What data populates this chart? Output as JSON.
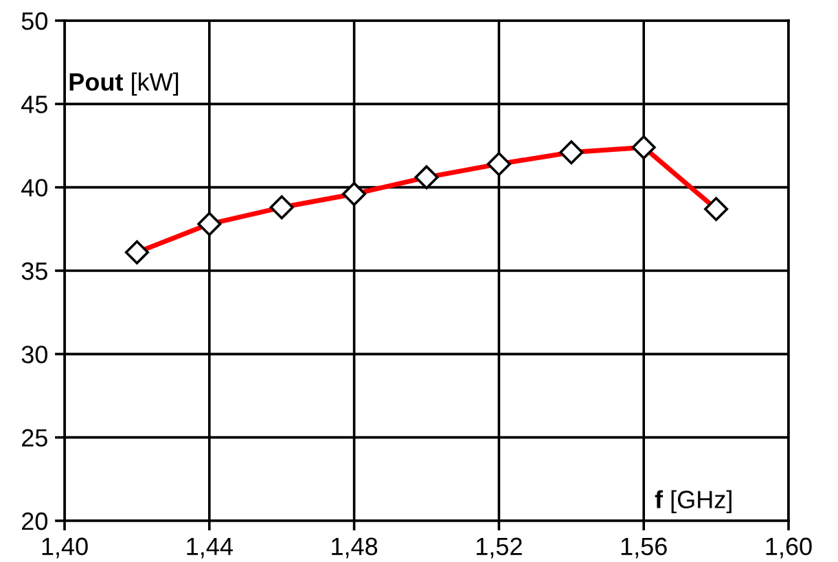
{
  "chart_data": {
    "type": "line",
    "xlabel": "f [GHz]",
    "ylabel": "Pout [kW]",
    "x": [
      1.42,
      1.44,
      1.46,
      1.48,
      1.5,
      1.52,
      1.54,
      1.56,
      1.58
    ],
    "series": [
      {
        "color": "#ff0000",
        "values": [
          36.1,
          37.8,
          38.8,
          39.6,
          40.6,
          41.4,
          42.1,
          42.4,
          38.7
        ]
      }
    ],
    "xlim": [
      1.4,
      1.6
    ],
    "ylim": [
      20,
      50
    ],
    "xticks": [
      {
        "value": 1.4,
        "label": "1,40"
      },
      {
        "value": 1.44,
        "label": "1,44"
      },
      {
        "value": 1.48,
        "label": "1,48"
      },
      {
        "value": 1.52,
        "label": "1,52"
      },
      {
        "value": 1.56,
        "label": "1,56"
      },
      {
        "value": 1.6,
        "label": "1,60"
      }
    ],
    "yticks": [
      20,
      25,
      30,
      35,
      40,
      45,
      50
    ],
    "grid": true,
    "marker": "diamond",
    "line_style": "solid"
  }
}
